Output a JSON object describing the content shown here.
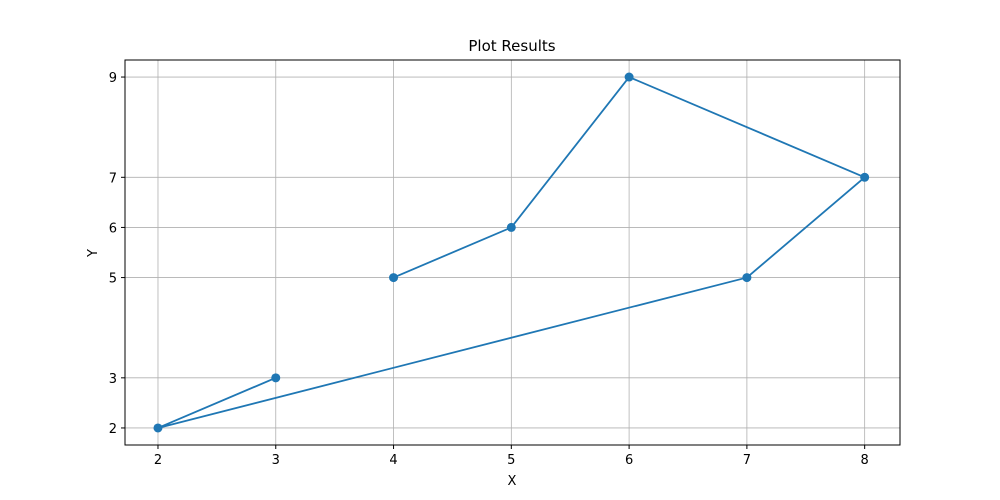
{
  "chart_data": {
    "type": "line",
    "title": "Plot Results",
    "xlabel": "X",
    "ylabel": "Y",
    "xlim": [
      1.72,
      8.3
    ],
    "ylim": [
      1.66,
      9.34
    ],
    "grid": true,
    "markers": true,
    "x_ticks": [
      2,
      3,
      4,
      5,
      6,
      7,
      8
    ],
    "y_ticks": [
      2,
      3,
      5,
      6,
      7,
      9
    ],
    "series": [
      {
        "color": "#1f77b4",
        "x": [
          4,
          5,
          6,
          8,
          7,
          2,
          3
        ],
        "y": [
          5,
          6,
          9,
          7,
          5,
          2,
          3
        ]
      }
    ]
  }
}
